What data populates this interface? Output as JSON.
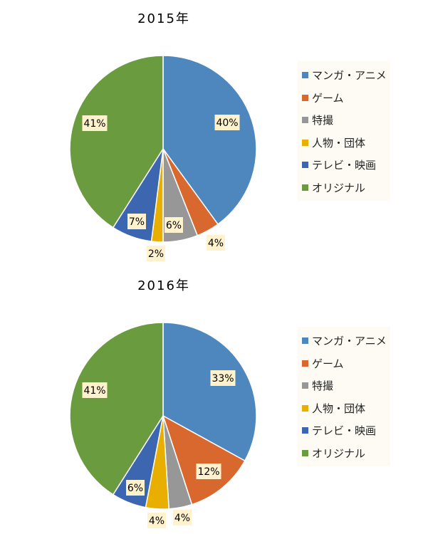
{
  "colors": {
    "manga": "#4e87bd",
    "game": "#d8682e",
    "tokusatsu": "#979797",
    "person": "#e8ae00",
    "tv": "#3d66b1",
    "original": "#6a9b3f",
    "label_bg": "#fff2cc"
  },
  "chart_data": [
    {
      "type": "pie",
      "title": "2015年",
      "categories": [
        "マンガ・アニメ",
        "ゲーム",
        "特撮",
        "人物・団体",
        "テレビ・映画",
        "オリジナル"
      ],
      "values": [
        40,
        4,
        6,
        2,
        7,
        41
      ],
      "labels": [
        "40%",
        "4%",
        "6%",
        "2%",
        "7%",
        "41%"
      ],
      "legend_position": "right"
    },
    {
      "type": "pie",
      "title": "2016年",
      "categories": [
        "マンガ・アニメ",
        "ゲーム",
        "特撮",
        "人物・団体",
        "テレビ・映画",
        "オリジナル"
      ],
      "values": [
        33,
        12,
        4,
        4,
        6,
        41
      ],
      "labels": [
        "33%",
        "12%",
        "4%",
        "4%",
        "6%",
        "41%"
      ],
      "legend_position": "right"
    }
  ]
}
